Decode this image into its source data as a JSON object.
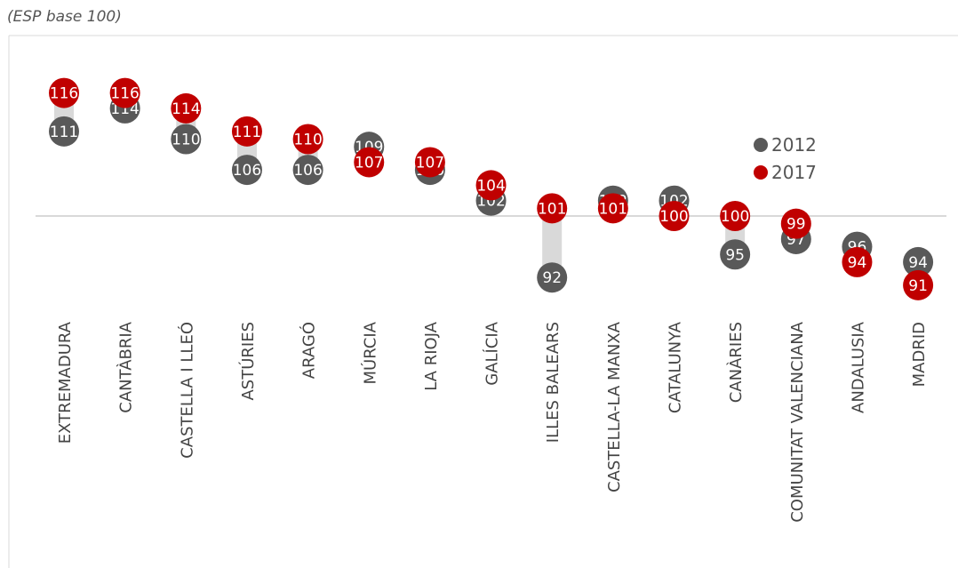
{
  "subtitle": "(ESP base 100)",
  "chart_data": {
    "type": "dot",
    "reference_value": 100,
    "categories": [
      "EXTREMADURA",
      "CANTÀBRIA",
      "CASTELLA I LLEÓ",
      "ASTÚRIES",
      "ARAGÓ",
      "MÚRCIA",
      "LA RIOJA",
      "GALÍCIA",
      "ILLES BALEARS",
      "CASTELLA-LA MANXA",
      "CATALUNYA",
      "CANÀRIES",
      "COMUNITAT VALENCIANA",
      "ANDALUSIA",
      "MADRID"
    ],
    "series": [
      {
        "name": "2012",
        "color": "#595959",
        "values": [
          111,
          114,
          110,
          106,
          106,
          109,
          106,
          102,
          92,
          102,
          102,
          95,
          97,
          96,
          94
        ]
      },
      {
        "name": "2017",
        "color": "#c00000",
        "values": [
          116,
          116,
          114,
          111,
          110,
          107,
          107,
          104,
          101,
          101,
          100,
          100,
          99,
          94,
          91
        ]
      }
    ],
    "range_bar_color": "#d9d9d9",
    "legend_position": "right"
  }
}
